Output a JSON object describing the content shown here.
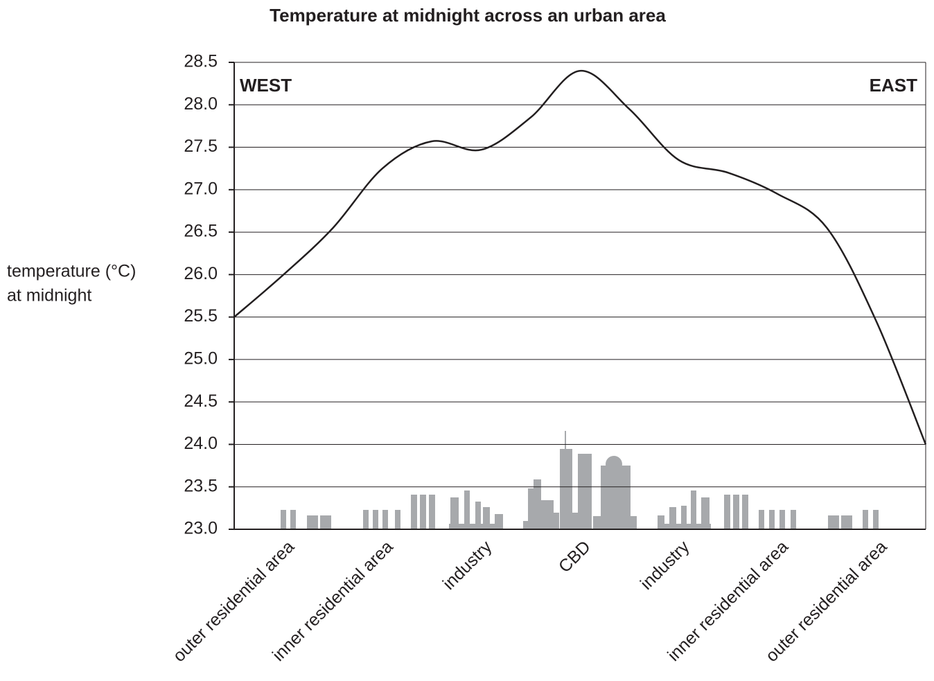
{
  "chart_data": {
    "type": "line",
    "title": "Temperature at midnight across an urban area",
    "ylabel": [
      "temperature (°C)",
      "at midnight"
    ],
    "annotations": [
      "WEST",
      "EAST"
    ],
    "categories": [
      "outer residential area",
      "inner residential area",
      "industry",
      "CBD",
      "industry",
      "inner residential area",
      "outer residential area"
    ],
    "x": [
      0,
      0.5,
      1,
      1.5,
      2,
      2.5,
      3,
      3.5,
      4,
      4.5,
      5,
      5.5,
      6,
      6.5,
      7
    ],
    "xlim": [
      0,
      7
    ],
    "values": [
      25.5,
      26.0,
      26.55,
      27.25,
      27.57,
      27.47,
      27.85,
      28.4,
      27.95,
      27.35,
      27.2,
      26.95,
      26.55,
      25.45,
      24.0
    ],
    "color": "#231f20",
    "ylim": [
      23.0,
      28.5
    ],
    "yticks": [
      {
        "value": 23.0,
        "label": "23.0"
      },
      23.5,
      {
        "value": 24.0,
        "label": "24.0"
      },
      24.5,
      {
        "value": 25.0,
        "label": "25.0"
      },
      25.5,
      {
        "value": 26.0,
        "label": "26.0"
      },
      26.5,
      {
        "value": 27.0,
        "label": "27.0"
      },
      27.5,
      {
        "value": 28.0,
        "label": "28.0"
      },
      28.5
    ],
    "grid": true
  }
}
